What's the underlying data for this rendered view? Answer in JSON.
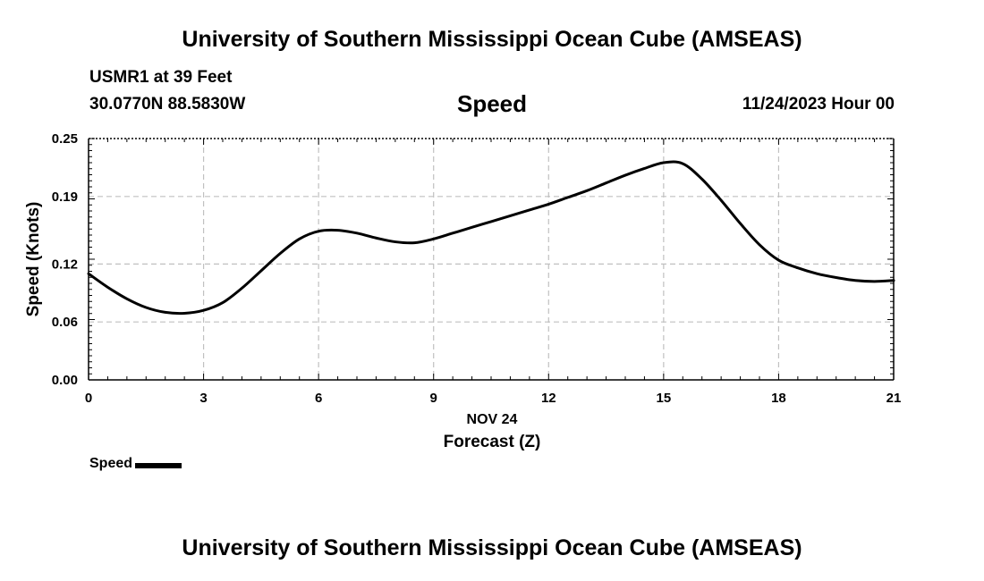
{
  "header": {
    "title": "University of Southern Mississippi Ocean Cube (AMSEAS)",
    "station": "USMR1 at 39 Feet",
    "coords": "30.0770N  88.5830W",
    "variable": "Speed",
    "datetime": "11/24/2023 Hour 00"
  },
  "footer": {
    "title": "University of Southern Mississippi Ocean Cube (AMSEAS)"
  },
  "legend": {
    "label": "Speed",
    "color": "#000000"
  },
  "chart_data": {
    "type": "line",
    "title": "Speed",
    "xlabel": "Forecast (Z)",
    "xsublabel": "NOV 24",
    "ylabel": "Speed (Knots)",
    "xlim": [
      0,
      21
    ],
    "ylim": [
      0,
      0.25
    ],
    "xticks": [
      0,
      3,
      6,
      9,
      12,
      15,
      18,
      21
    ],
    "yticks": [
      0.0,
      0.06,
      0.12,
      0.19,
      0.25
    ],
    "ytick_labels": [
      "0.00",
      "0.06",
      "0.12",
      "0.19",
      "0.25"
    ],
    "grid": true,
    "legend_position": "bottom-left",
    "series": [
      {
        "name": "Speed",
        "color": "#000000",
        "x": [
          0,
          0.5,
          1,
          1.5,
          2,
          2.5,
          3,
          3.5,
          4,
          4.5,
          5,
          5.5,
          6,
          6.5,
          7,
          7.5,
          8,
          8.5,
          9,
          9.5,
          10,
          10.5,
          11,
          11.5,
          12,
          12.5,
          13,
          13.5,
          14,
          14.5,
          15,
          15.5,
          16,
          16.5,
          17,
          17.5,
          18,
          18.5,
          19,
          19.5,
          20,
          20.5,
          21
        ],
        "y": [
          0.11,
          0.096,
          0.084,
          0.075,
          0.07,
          0.069,
          0.072,
          0.08,
          0.095,
          0.113,
          0.131,
          0.146,
          0.154,
          0.155,
          0.152,
          0.147,
          0.143,
          0.142,
          0.146,
          0.152,
          0.158,
          0.164,
          0.17,
          0.176,
          0.182,
          0.189,
          0.196,
          0.204,
          0.212,
          0.219,
          0.225,
          0.224,
          0.208,
          0.186,
          0.162,
          0.14,
          0.124,
          0.116,
          0.11,
          0.106,
          0.103,
          0.102,
          0.103
        ]
      }
    ]
  }
}
